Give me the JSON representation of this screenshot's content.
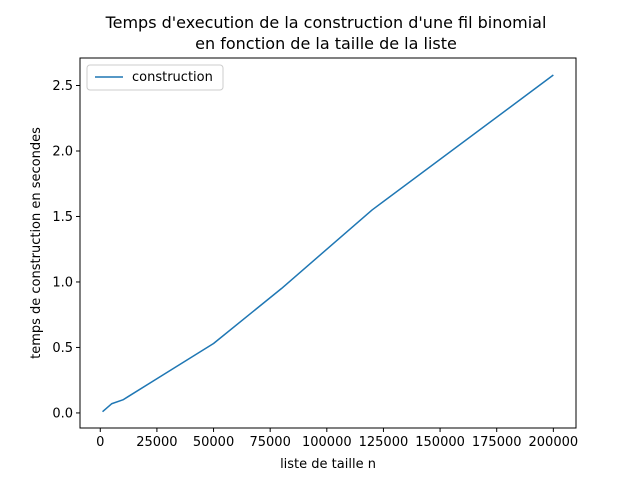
{
  "chart_data": {
    "type": "line",
    "title_lines": [
      "Temps d'execution de la construction d'une fil binomial",
      "en fonction de la taille de la liste"
    ],
    "xlabel": "liste de taille n",
    "ylabel": "temps de construction en secondes",
    "xlim": [
      -8950,
      210000
    ],
    "ylim": [
      -0.115,
      2.71
    ],
    "xticks": [
      0,
      25000,
      50000,
      75000,
      100000,
      125000,
      150000,
      175000,
      200000
    ],
    "yticks": [
      0.0,
      0.5,
      1.0,
      1.5,
      2.0,
      2.5
    ],
    "ytick_labels": [
      "0.0",
      "0.5",
      "1.0",
      "1.5",
      "2.0",
      "2.5"
    ],
    "grid": false,
    "legend_position": "top-left",
    "series": [
      {
        "name": "construction",
        "color": "#1f77b4",
        "x": [
          1000,
          5000,
          10000,
          50000,
          80000,
          120000,
          200000
        ],
        "y": [
          0.01,
          0.07,
          0.1,
          0.53,
          0.95,
          1.55,
          2.58
        ]
      }
    ]
  }
}
